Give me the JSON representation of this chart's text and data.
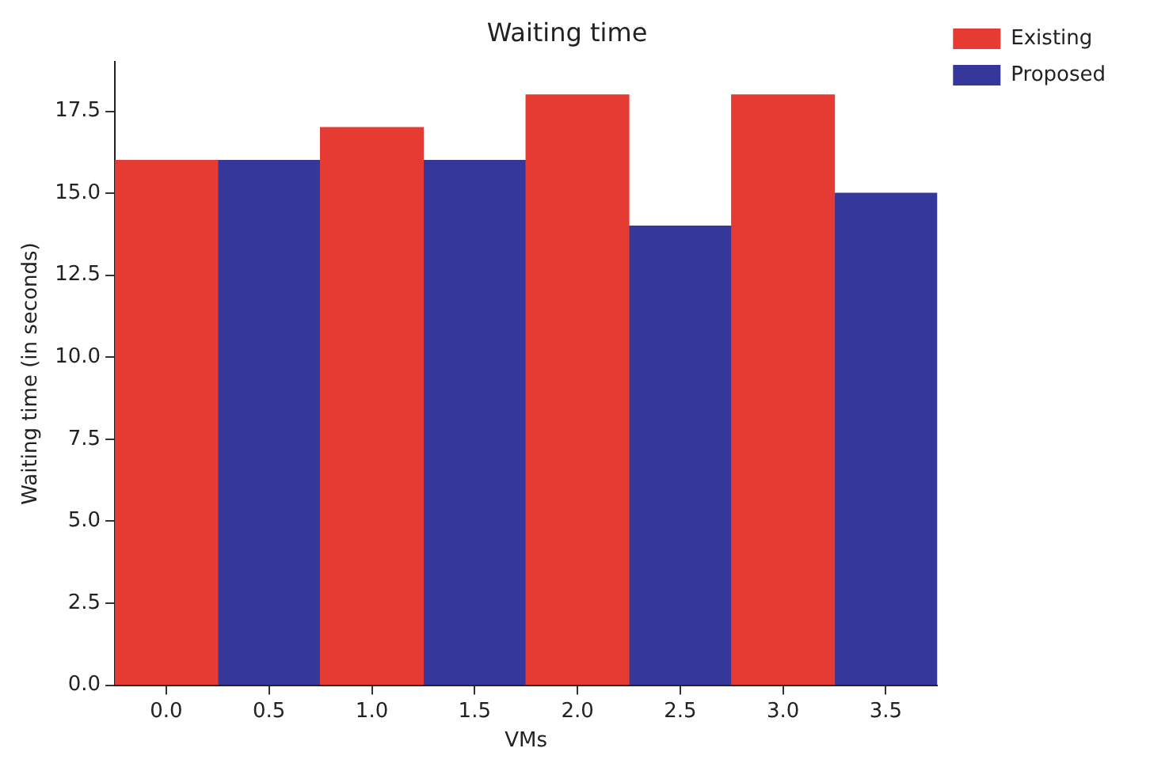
{
  "chart_data": {
    "type": "bar",
    "title": "Waiting time",
    "xlabel": "VMs",
    "ylabel": "Waiting time (in seconds)",
    "categories": [
      "0.0",
      "0.5",
      "1.0",
      "1.5",
      "2.0",
      "2.5",
      "3.0",
      "3.5"
    ],
    "series": [
      {
        "name": "Existing",
        "color": "#e63b33",
        "values": [
          16,
          null,
          17,
          null,
          18,
          null,
          18,
          null
        ]
      },
      {
        "name": "Proposed",
        "color": "#35379a",
        "values": [
          null,
          16,
          null,
          16,
          null,
          14,
          null,
          15
        ]
      }
    ],
    "ylim": [
      0,
      19
    ],
    "yticks": [
      {
        "value": 0,
        "label": "0.0"
      },
      {
        "value": 2.5,
        "label": "2.5"
      },
      {
        "value": 5,
        "label": "5.0"
      },
      {
        "value": 7.5,
        "label": "7.5"
      },
      {
        "value": 10,
        "label": "10.0"
      },
      {
        "value": 12.5,
        "label": "12.5"
      },
      {
        "value": 15,
        "label": "15.0"
      },
      {
        "value": 17.5,
        "label": "17.5"
      }
    ],
    "grid": false,
    "legend": "top right"
  }
}
